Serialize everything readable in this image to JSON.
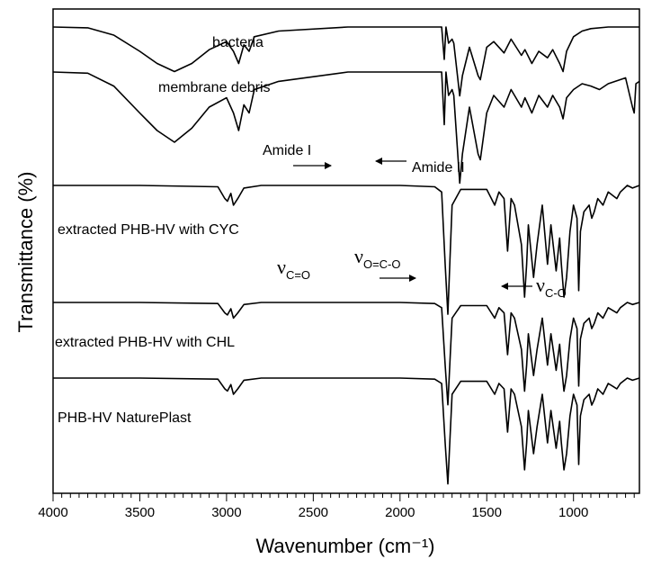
{
  "chart_data": {
    "type": "line",
    "title": "",
    "xlabel": "Wavenumber (cm⁻¹)",
    "ylabel": "Transmittance (%)",
    "x_reversed": true,
    "xlim": [
      4000,
      620
    ],
    "x_ticks": [
      4000,
      3500,
      3000,
      2500,
      2000,
      1500,
      1000
    ],
    "y_ticks_shown": false,
    "grid": false,
    "legend": "none (curves labelled inline)",
    "series": [
      {
        "name": "bacteria",
        "points": [
          [
            4000,
            100
          ],
          [
            3800,
            99
          ],
          [
            3650,
            90
          ],
          [
            3500,
            70
          ],
          [
            3400,
            55
          ],
          [
            3300,
            45
          ],
          [
            3200,
            55
          ],
          [
            3100,
            72
          ],
          [
            3000,
            82
          ],
          [
            2960,
            70
          ],
          [
            2930,
            55
          ],
          [
            2900,
            78
          ],
          [
            2870,
            70
          ],
          [
            2840,
            88
          ],
          [
            2700,
            95
          ],
          [
            2300,
            100
          ],
          [
            2000,
            100
          ],
          [
            1760,
            100
          ],
          [
            1745,
            60
          ],
          [
            1735,
            100
          ],
          [
            1720,
            80
          ],
          [
            1700,
            85
          ],
          [
            1690,
            80
          ],
          [
            1656,
            15
          ],
          [
            1640,
            40
          ],
          [
            1600,
            75
          ],
          [
            1550,
            40
          ],
          [
            1537,
            35
          ],
          [
            1500,
            75
          ],
          [
            1460,
            82
          ],
          [
            1400,
            68
          ],
          [
            1360,
            85
          ],
          [
            1300,
            65
          ],
          [
            1280,
            72
          ],
          [
            1240,
            55
          ],
          [
            1200,
            70
          ],
          [
            1150,
            62
          ],
          [
            1120,
            72
          ],
          [
            1080,
            55
          ],
          [
            1060,
            45
          ],
          [
            1040,
            70
          ],
          [
            1000,
            88
          ],
          [
            950,
            95
          ],
          [
            900,
            98
          ],
          [
            800,
            100
          ],
          [
            700,
            100
          ],
          [
            620,
            100
          ]
        ]
      },
      {
        "name": "membrane debris",
        "points": [
          [
            4000,
            100
          ],
          [
            3800,
            99
          ],
          [
            3650,
            88
          ],
          [
            3500,
            65
          ],
          [
            3400,
            50
          ],
          [
            3300,
            40
          ],
          [
            3200,
            52
          ],
          [
            3100,
            70
          ],
          [
            3000,
            78
          ],
          [
            2960,
            65
          ],
          [
            2930,
            50
          ],
          [
            2900,
            72
          ],
          [
            2870,
            65
          ],
          [
            2840,
            85
          ],
          [
            2700,
            92
          ],
          [
            2300,
            100
          ],
          [
            2000,
            100
          ],
          [
            1760,
            100
          ],
          [
            1745,
            55
          ],
          [
            1735,
            100
          ],
          [
            1720,
            80
          ],
          [
            1700,
            85
          ],
          [
            1690,
            80
          ],
          [
            1656,
            5
          ],
          [
            1640,
            30
          ],
          [
            1600,
            70
          ],
          [
            1550,
            30
          ],
          [
            1537,
            25
          ],
          [
            1500,
            65
          ],
          [
            1460,
            80
          ],
          [
            1400,
            70
          ],
          [
            1360,
            85
          ],
          [
            1300,
            70
          ],
          [
            1280,
            78
          ],
          [
            1240,
            65
          ],
          [
            1200,
            80
          ],
          [
            1150,
            70
          ],
          [
            1120,
            80
          ],
          [
            1080,
            70
          ],
          [
            1060,
            60
          ],
          [
            1040,
            78
          ],
          [
            1000,
            85
          ],
          [
            950,
            90
          ],
          [
            900,
            88
          ],
          [
            850,
            85
          ],
          [
            800,
            90
          ],
          [
            700,
            95
          ],
          [
            660,
            70
          ],
          [
            650,
            65
          ],
          [
            640,
            90
          ],
          [
            620,
            92
          ]
        ]
      },
      {
        "name": "extracted PHB-HV with CYC",
        "points": [
          [
            4000,
            100
          ],
          [
            3500,
            100
          ],
          [
            3050,
            99
          ],
          [
            3010,
            90
          ],
          [
            2995,
            88
          ],
          [
            2975,
            94
          ],
          [
            2960,
            85
          ],
          [
            2935,
            90
          ],
          [
            2900,
            98
          ],
          [
            2800,
            100
          ],
          [
            2000,
            100
          ],
          [
            1800,
            99
          ],
          [
            1760,
            95
          ],
          [
            1740,
            40
          ],
          [
            1724,
            2
          ],
          [
            1710,
            50
          ],
          [
            1700,
            85
          ],
          [
            1650,
            97
          ],
          [
            1500,
            97
          ],
          [
            1454,
            85
          ],
          [
            1430,
            95
          ],
          [
            1400,
            90
          ],
          [
            1380,
            50
          ],
          [
            1360,
            90
          ],
          [
            1340,
            85
          ],
          [
            1300,
            55
          ],
          [
            1282,
            15
          ],
          [
            1270,
            40
          ],
          [
            1260,
            70
          ],
          [
            1230,
            30
          ],
          [
            1210,
            55
          ],
          [
            1180,
            85
          ],
          [
            1150,
            40
          ],
          [
            1130,
            70
          ],
          [
            1100,
            35
          ],
          [
            1080,
            60
          ],
          [
            1070,
            40
          ],
          [
            1055,
            15
          ],
          [
            1040,
            30
          ],
          [
            1020,
            65
          ],
          [
            1000,
            85
          ],
          [
            980,
            75
          ],
          [
            977,
            60
          ],
          [
            970,
            20
          ],
          [
            960,
            65
          ],
          [
            940,
            80
          ],
          [
            910,
            85
          ],
          [
            895,
            75
          ],
          [
            880,
            80
          ],
          [
            860,
            90
          ],
          [
            830,
            85
          ],
          [
            800,
            95
          ],
          [
            770,
            92
          ],
          [
            750,
            90
          ],
          [
            730,
            95
          ],
          [
            690,
            100
          ],
          [
            660,
            98
          ],
          [
            620,
            100
          ]
        ]
      },
      {
        "name": "extracted PHB-HV with CHL",
        "points": [
          [
            4000,
            100
          ],
          [
            3500,
            100
          ],
          [
            3050,
            99
          ],
          [
            3010,
            90
          ],
          [
            2995,
            88
          ],
          [
            2975,
            94
          ],
          [
            2960,
            85
          ],
          [
            2935,
            90
          ],
          [
            2900,
            98
          ],
          [
            2800,
            100
          ],
          [
            2000,
            100
          ],
          [
            1800,
            99
          ],
          [
            1760,
            95
          ],
          [
            1740,
            40
          ],
          [
            1724,
            2
          ],
          [
            1710,
            50
          ],
          [
            1700,
            85
          ],
          [
            1650,
            97
          ],
          [
            1500,
            97
          ],
          [
            1454,
            85
          ],
          [
            1430,
            95
          ],
          [
            1400,
            90
          ],
          [
            1380,
            50
          ],
          [
            1360,
            90
          ],
          [
            1340,
            85
          ],
          [
            1300,
            55
          ],
          [
            1282,
            15
          ],
          [
            1270,
            40
          ],
          [
            1260,
            70
          ],
          [
            1230,
            30
          ],
          [
            1210,
            55
          ],
          [
            1180,
            85
          ],
          [
            1150,
            40
          ],
          [
            1130,
            70
          ],
          [
            1100,
            35
          ],
          [
            1080,
            60
          ],
          [
            1070,
            40
          ],
          [
            1055,
            15
          ],
          [
            1040,
            30
          ],
          [
            1020,
            65
          ],
          [
            1000,
            85
          ],
          [
            980,
            75
          ],
          [
            977,
            60
          ],
          [
            970,
            20
          ],
          [
            960,
            65
          ],
          [
            940,
            80
          ],
          [
            910,
            85
          ],
          [
            895,
            75
          ],
          [
            880,
            80
          ],
          [
            860,
            90
          ],
          [
            830,
            85
          ],
          [
            800,
            95
          ],
          [
            770,
            92
          ],
          [
            750,
            90
          ],
          [
            730,
            95
          ],
          [
            690,
            100
          ],
          [
            660,
            98
          ],
          [
            620,
            100
          ]
        ]
      },
      {
        "name": "PHB-HV NaturePlast",
        "points": [
          [
            4000,
            100
          ],
          [
            3500,
            100
          ],
          [
            3050,
            99
          ],
          [
            3010,
            90
          ],
          [
            2995,
            88
          ],
          [
            2975,
            94
          ],
          [
            2960,
            85
          ],
          [
            2935,
            90
          ],
          [
            2900,
            98
          ],
          [
            2800,
            100
          ],
          [
            2000,
            100
          ],
          [
            1800,
            99
          ],
          [
            1760,
            95
          ],
          [
            1740,
            40
          ],
          [
            1724,
            2
          ],
          [
            1710,
            50
          ],
          [
            1700,
            85
          ],
          [
            1650,
            97
          ],
          [
            1500,
            97
          ],
          [
            1454,
            85
          ],
          [
            1430,
            95
          ],
          [
            1400,
            90
          ],
          [
            1380,
            50
          ],
          [
            1360,
            90
          ],
          [
            1340,
            85
          ],
          [
            1300,
            55
          ],
          [
            1282,
            15
          ],
          [
            1270,
            40
          ],
          [
            1260,
            70
          ],
          [
            1230,
            30
          ],
          [
            1210,
            55
          ],
          [
            1180,
            85
          ],
          [
            1150,
            40
          ],
          [
            1130,
            70
          ],
          [
            1100,
            35
          ],
          [
            1080,
            60
          ],
          [
            1070,
            40
          ],
          [
            1055,
            15
          ],
          [
            1040,
            30
          ],
          [
            1020,
            65
          ],
          [
            1000,
            85
          ],
          [
            980,
            75
          ],
          [
            977,
            60
          ],
          [
            970,
            20
          ],
          [
            960,
            65
          ],
          [
            940,
            80
          ],
          [
            910,
            85
          ],
          [
            895,
            75
          ],
          [
            880,
            80
          ],
          [
            860,
            90
          ],
          [
            830,
            85
          ],
          [
            800,
            95
          ],
          [
            770,
            92
          ],
          [
            750,
            90
          ],
          [
            730,
            95
          ],
          [
            690,
            100
          ],
          [
            660,
            98
          ],
          [
            620,
            100
          ]
        ]
      }
    ],
    "annotations": {
      "amide_i": "Amide I",
      "amide_ii": "Amide II",
      "nu_symbol": "ν",
      "nu_co_sub": "C=O",
      "nu_ococ_sub": "O=C-O",
      "nu_c_o_sub": "C-O"
    }
  }
}
